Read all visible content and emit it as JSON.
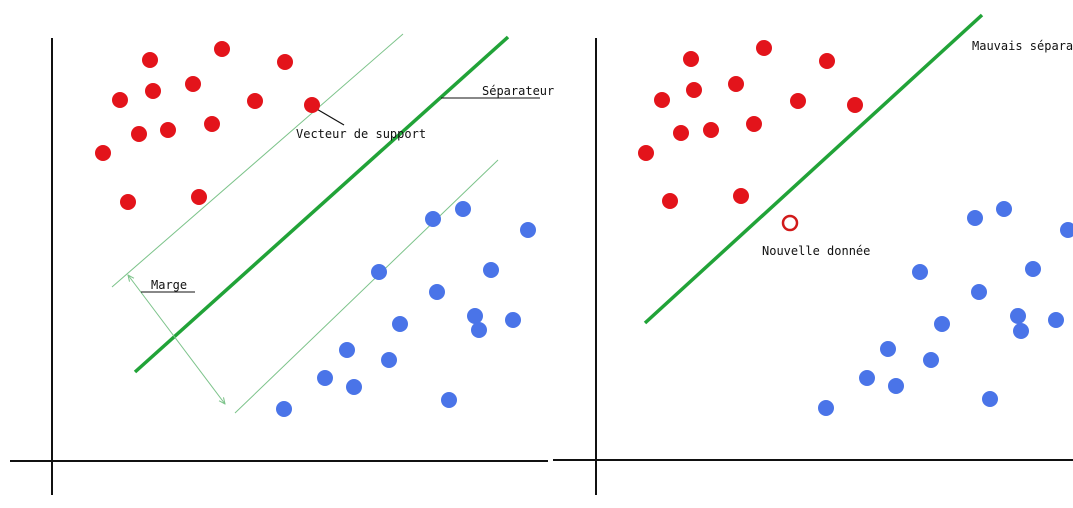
{
  "colors": {
    "background": "#ffffff",
    "axis": "#111111",
    "class_red": "#e3141b",
    "class_blue": "#4a74e8",
    "separator": "#21a338",
    "margin_line": "#7cc38a",
    "new_point": "#d11a1a"
  },
  "left_panel": {
    "separator_label": "Séparateur",
    "support_vector_label": "Vecteur de support",
    "margin_label": "Marge"
  },
  "right_panel": {
    "bad_separator_label": "Mauvais séparateur",
    "new_data_label": "Nouvelle donnée"
  }
}
